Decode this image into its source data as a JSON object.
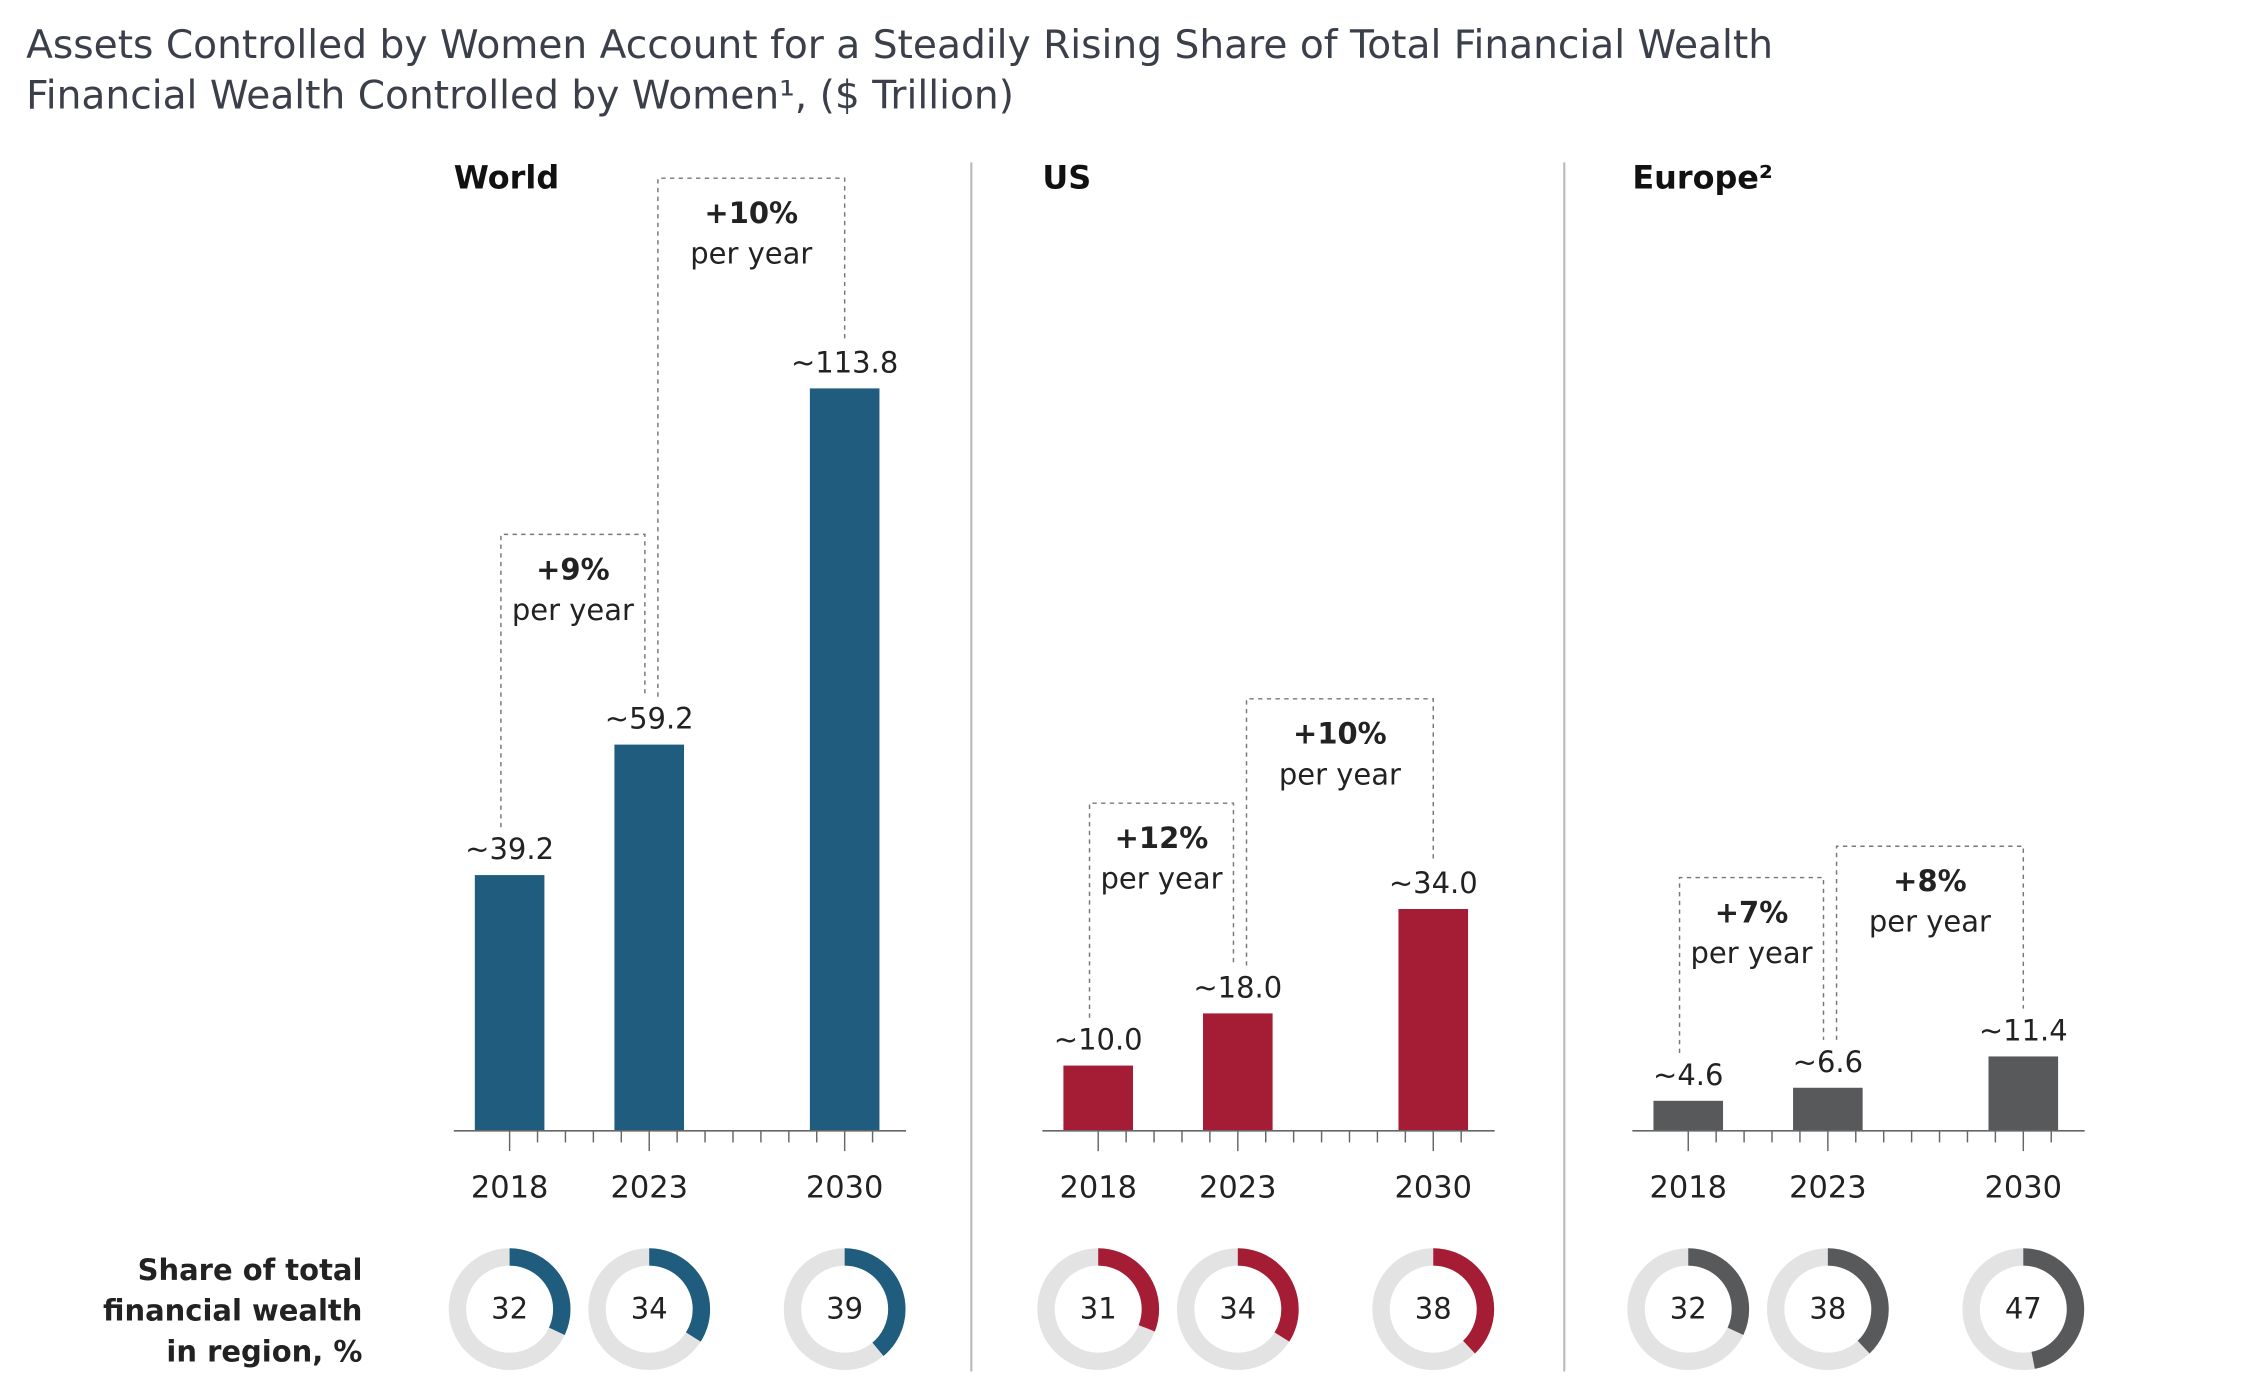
{
  "title": "Assets Controlled by Women Account for a Steadily Rising Share of Total Financial Wealth",
  "subtitle": "Financial Wealth Controlled by Women¹, ($ Trillion)",
  "share_label": [
    "Share of total",
    "financial wealth",
    "in region, %"
  ],
  "chart_data": [
    {
      "type": "bar",
      "title": "World",
      "x": [
        2018,
        2023,
        2030
      ],
      "values": [
        39.2,
        59.2,
        113.8
      ],
      "value_labels": [
        "~39.2",
        "~59.2",
        "~113.8"
      ],
      "color": "#1f5c7d",
      "xlim": [
        2016,
        2032.2
      ],
      "xticks": [
        2018,
        2019,
        2020,
        2021,
        2022,
        2023,
        2024,
        2025,
        2026,
        2027,
        2028,
        2029,
        2030,
        2031
      ],
      "ylim": [
        0,
        115
      ],
      "annotations": [
        {
          "label": "+9%",
          "sublabel": "per year"
        },
        {
          "label": "+10%",
          "sublabel": "per year"
        }
      ],
      "shares": [
        32,
        34,
        39
      ]
    },
    {
      "type": "bar",
      "title": "US",
      "x": [
        2018,
        2023,
        2030
      ],
      "values": [
        10.0,
        18.0,
        34.0
      ],
      "value_labels": [
        "~10.0",
        "~18.0",
        "~34.0"
      ],
      "color": "#a51d35",
      "xlim": [
        2016,
        2032.2
      ],
      "xticks": [
        2018,
        2019,
        2020,
        2021,
        2022,
        2023,
        2024,
        2025,
        2026,
        2027,
        2028,
        2029,
        2030,
        2031
      ],
      "ylim": [
        0,
        115
      ],
      "annotations": [
        {
          "label": "+12%",
          "sublabel": "per year"
        },
        {
          "label": "+10%",
          "sublabel": "per year"
        }
      ],
      "shares": [
        31,
        34,
        38
      ]
    },
    {
      "type": "bar",
      "title": "Europe²",
      "x": [
        2018,
        2023,
        2030
      ],
      "values": [
        4.6,
        6.6,
        11.4
      ],
      "value_labels": [
        "~4.6",
        "~6.6",
        "~11.4"
      ],
      "color": "#58595b",
      "xlim": [
        2016,
        2032.2
      ],
      "xticks": [
        2018,
        2019,
        2020,
        2021,
        2022,
        2023,
        2024,
        2025,
        2026,
        2027,
        2028,
        2029,
        2030,
        2031
      ],
      "ylim": [
        0,
        115
      ],
      "annotations": [
        {
          "label": "+7%",
          "sublabel": "per year"
        },
        {
          "label": "+8%",
          "sublabel": "per year"
        }
      ],
      "shares": [
        32,
        38,
        47
      ]
    }
  ]
}
